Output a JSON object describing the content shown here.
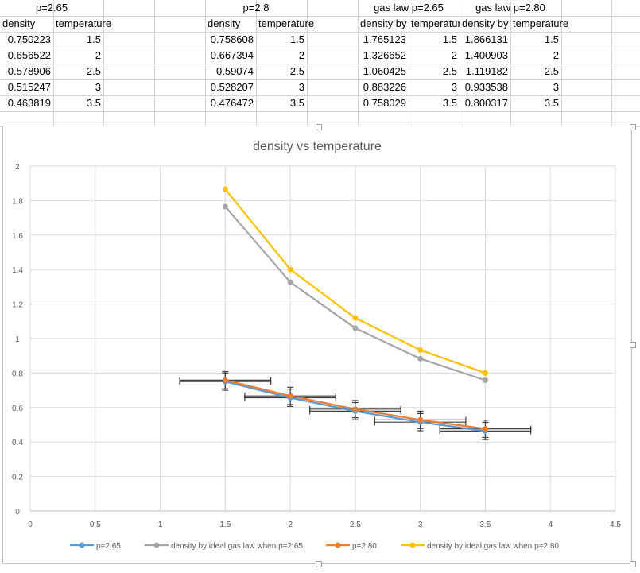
{
  "sheet": {
    "headers": [
      {
        "text": "p=2.65",
        "col": 0,
        "span": 2
      },
      {
        "text": "p=2.8",
        "col": 4,
        "span": 2
      },
      {
        "text": "gas law p=2.65",
        "col": 7,
        "span": 2
      },
      {
        "text": "gas law p=2.80",
        "col": 9,
        "span": 2
      }
    ],
    "subheaders": [
      {
        "text": "density",
        "col": 0
      },
      {
        "text": "temperature",
        "col": 1
      },
      {
        "text": "density",
        "col": 4
      },
      {
        "text": "temperature",
        "col": 5
      },
      {
        "text": "density by",
        "col": 7,
        "clip": true
      },
      {
        "text": "temperature",
        "col": 8,
        "clip": true
      },
      {
        "text": "density by",
        "col": 9,
        "clip": true
      },
      {
        "text": "temperature",
        "col": 10
      }
    ],
    "rows": [
      [
        "0.750223",
        "1.5",
        "0.758608",
        "1.5",
        "1.765123",
        "1.5",
        "1.866131",
        "1.5"
      ],
      [
        "0.656522",
        "2",
        "0.667394",
        "2",
        "1.326652",
        "2",
        "1.400903",
        "2"
      ],
      [
        "0.578906",
        "2.5",
        "0.59074",
        "2.5",
        "1.060425",
        "2.5",
        "1.119182",
        "2.5"
      ],
      [
        "0.515247",
        "3",
        "0.528207",
        "3",
        "0.883226",
        "3",
        "0.933538",
        "3"
      ],
      [
        "0.463819",
        "3.5",
        "0.476472",
        "3.5",
        "0.758029",
        "3.5",
        "0.800317",
        "3.5"
      ]
    ]
  },
  "chart_data": {
    "type": "scatter",
    "title": "density vs temperature",
    "xlabel": "",
    "ylabel": "",
    "xlim": [
      0,
      4.5
    ],
    "ylim": [
      0,
      2
    ],
    "xticks": [
      "0",
      "0.5",
      "1",
      "1.5",
      "2",
      "2.5",
      "3",
      "3.5",
      "4",
      "4.5"
    ],
    "yticks": [
      "0",
      "0.2",
      "0.4",
      "0.6",
      "0.8",
      "1",
      "1.2",
      "1.4",
      "1.6",
      "1.8",
      "2"
    ],
    "grid": true,
    "legend": "bottom",
    "x": [
      1.5,
      2,
      2.5,
      3,
      3.5
    ],
    "series": [
      {
        "name": "p=2.65",
        "color": "#5b9bd5",
        "values": [
          0.750223,
          0.656522,
          0.578906,
          0.515247,
          0.463819
        ],
        "xerr": 0.35,
        "yerr": 0.05
      },
      {
        "name": "density by ideal gas law when p=2.65",
        "color": "#a5a5a5",
        "values": [
          1.765123,
          1.326652,
          1.060425,
          0.883226,
          0.758029
        ]
      },
      {
        "name": "p=2.80",
        "color": "#ed7d31",
        "values": [
          0.758608,
          0.667394,
          0.59074,
          0.528207,
          0.476472
        ],
        "xerr": 0.35,
        "yerr": 0.05
      },
      {
        "name": "density by ideal gas law when p=2.80",
        "color": "#ffc000",
        "values": [
          1.866131,
          1.400903,
          1.119182,
          0.933538,
          0.800317
        ]
      }
    ]
  }
}
